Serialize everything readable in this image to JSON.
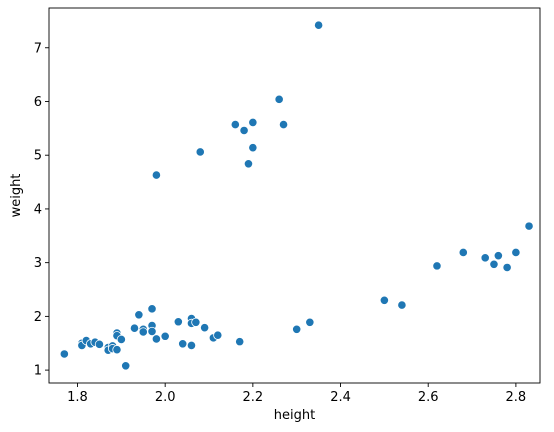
{
  "chart_data": {
    "type": "scatter",
    "title": "",
    "xlabel": "height",
    "ylabel": "weight",
    "xlim": [
      1.735,
      2.855
    ],
    "ylim": [
      0.76,
      7.74
    ],
    "x_ticks": [
      1.8,
      2.0,
      2.2,
      2.4,
      2.6,
      2.8
    ],
    "x_tick_labels": [
      "1.8",
      "2.0",
      "2.2",
      "2.4",
      "2.6",
      "2.8"
    ],
    "y_ticks": [
      1,
      2,
      3,
      4,
      5,
      6,
      7
    ],
    "y_tick_labels": [
      "1",
      "2",
      "3",
      "4",
      "5",
      "6",
      "7"
    ],
    "grid": false,
    "legend": "none",
    "marker_color": "#1f77b4",
    "series": [
      {
        "points": [
          [
            1.77,
            1.3
          ],
          [
            1.81,
            1.5
          ],
          [
            1.81,
            1.46
          ],
          [
            1.82,
            1.55
          ],
          [
            1.83,
            1.49
          ],
          [
            1.84,
            1.52
          ],
          [
            1.85,
            1.48
          ],
          [
            1.87,
            1.42
          ],
          [
            1.87,
            1.37
          ],
          [
            1.88,
            1.45
          ],
          [
            1.88,
            1.4
          ],
          [
            1.89,
            1.38
          ],
          [
            1.89,
            1.69
          ],
          [
            1.89,
            1.64
          ],
          [
            1.9,
            1.57
          ],
          [
            1.91,
            1.08
          ],
          [
            1.93,
            1.78
          ],
          [
            1.94,
            2.03
          ],
          [
            1.95,
            1.76
          ],
          [
            1.95,
            1.71
          ],
          [
            1.97,
            2.14
          ],
          [
            1.97,
            1.83
          ],
          [
            1.97,
            1.72
          ],
          [
            1.98,
            1.58
          ],
          [
            2.0,
            1.63
          ],
          [
            2.03,
            1.9
          ],
          [
            2.04,
            1.49
          ],
          [
            2.06,
            1.96
          ],
          [
            2.06,
            1.87
          ],
          [
            2.06,
            1.46
          ],
          [
            2.07,
            1.89
          ],
          [
            2.09,
            1.79
          ],
          [
            2.11,
            1.6
          ],
          [
            2.12,
            1.65
          ],
          [
            2.17,
            1.53
          ],
          [
            2.3,
            1.76
          ],
          [
            2.33,
            1.89
          ],
          [
            2.5,
            2.3
          ],
          [
            2.54,
            2.21
          ],
          [
            2.62,
            2.94
          ],
          [
            2.68,
            3.19
          ],
          [
            2.73,
            3.09
          ],
          [
            2.75,
            2.97
          ],
          [
            2.76,
            3.13
          ],
          [
            2.78,
            2.91
          ],
          [
            2.8,
            3.19
          ],
          [
            2.83,
            3.68
          ],
          [
            1.98,
            4.63
          ],
          [
            2.08,
            5.06
          ],
          [
            2.16,
            5.57
          ],
          [
            2.18,
            5.46
          ],
          [
            2.19,
            4.84
          ],
          [
            2.2,
            5.61
          ],
          [
            2.2,
            5.14
          ],
          [
            2.26,
            6.04
          ],
          [
            2.27,
            5.57
          ],
          [
            2.35,
            7.42
          ]
        ]
      }
    ]
  }
}
